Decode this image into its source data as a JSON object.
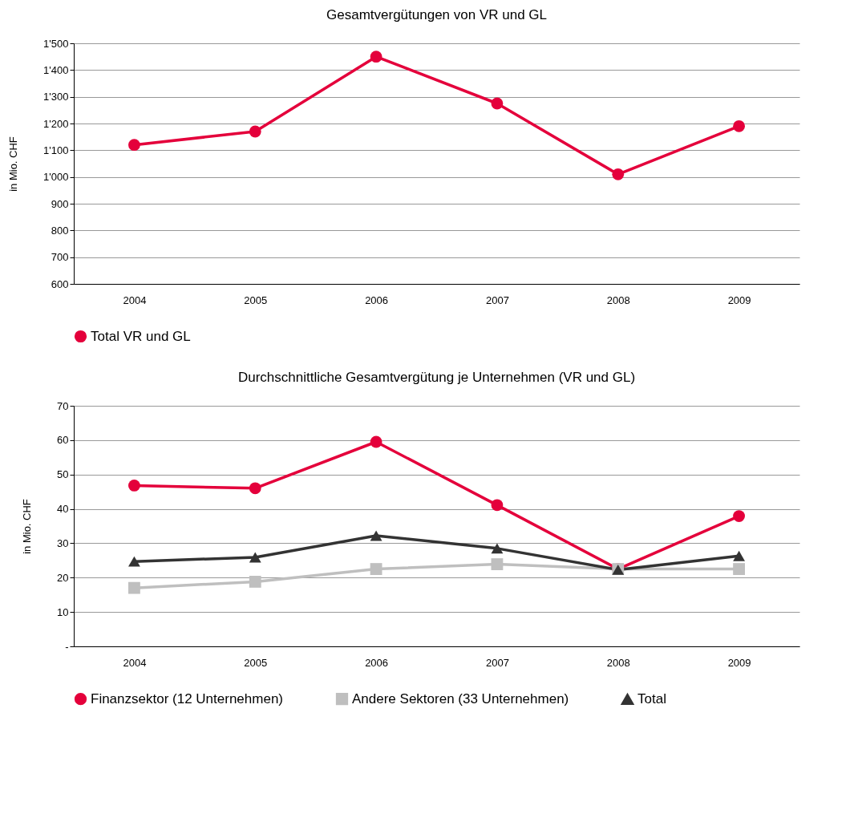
{
  "chart_data": [
    {
      "type": "line",
      "title": "Gesamtvergütungen von VR und GL",
      "ylabel": "in Mio. CHF",
      "categories": [
        "2004",
        "2005",
        "2006",
        "2007",
        "2008",
        "2009"
      ],
      "series": [
        {
          "name": "Total VR und GL",
          "color": "#e4003b",
          "marker": "circle",
          "values": [
            1120,
            1170,
            1450,
            1275,
            1010,
            1190
          ]
        }
      ],
      "ylim": [
        600,
        1500
      ],
      "yticks": [
        600,
        700,
        800,
        900,
        {
          "value": 1000,
          "label": "1'000"
        },
        {
          "value": 1100,
          "label": "1'100"
        },
        {
          "value": 1200,
          "label": "1'200"
        },
        {
          "value": 1300,
          "label": "1'300"
        },
        {
          "value": 1400,
          "label": "1'400"
        },
        {
          "value": 1500,
          "label": "1'500"
        }
      ],
      "grid": "y",
      "legend": "bottom",
      "line_style": "solid"
    },
    {
      "type": "line",
      "title": "Durchschnittliche Gesamtvergütung je Unternehmen (VR und GL)",
      "ylabel": "in Mio. CHF",
      "categories": [
        "2004",
        "2005",
        "2006",
        "2007",
        "2008",
        "2009"
      ],
      "series": [
        {
          "name": "Finanzsektor (12 Unternehmen)",
          "color": "#e4003b",
          "marker": "circle",
          "values": [
            46.8,
            46.0,
            59.5,
            41.1,
            22.5,
            37.9
          ]
        },
        {
          "name": "Andere Sektoren (33 Unternehmen)",
          "color": "#bfbfbf",
          "marker": "square",
          "values": [
            17.0,
            18.8,
            22.5,
            23.9,
            22.5,
            22.5
          ]
        },
        {
          "name": "Total",
          "color": "#333333",
          "marker": "triangle",
          "values": [
            24.7,
            25.9,
            32.2,
            28.5,
            22.3,
            26.3
          ]
        }
      ],
      "ylim": [
        0,
        70
      ],
      "yticks": [
        {
          "value": 0,
          "label": "-"
        },
        10,
        20,
        30,
        40,
        50,
        60,
        70
      ],
      "grid": "y",
      "legend": "bottom",
      "line_style": "solid"
    }
  ]
}
